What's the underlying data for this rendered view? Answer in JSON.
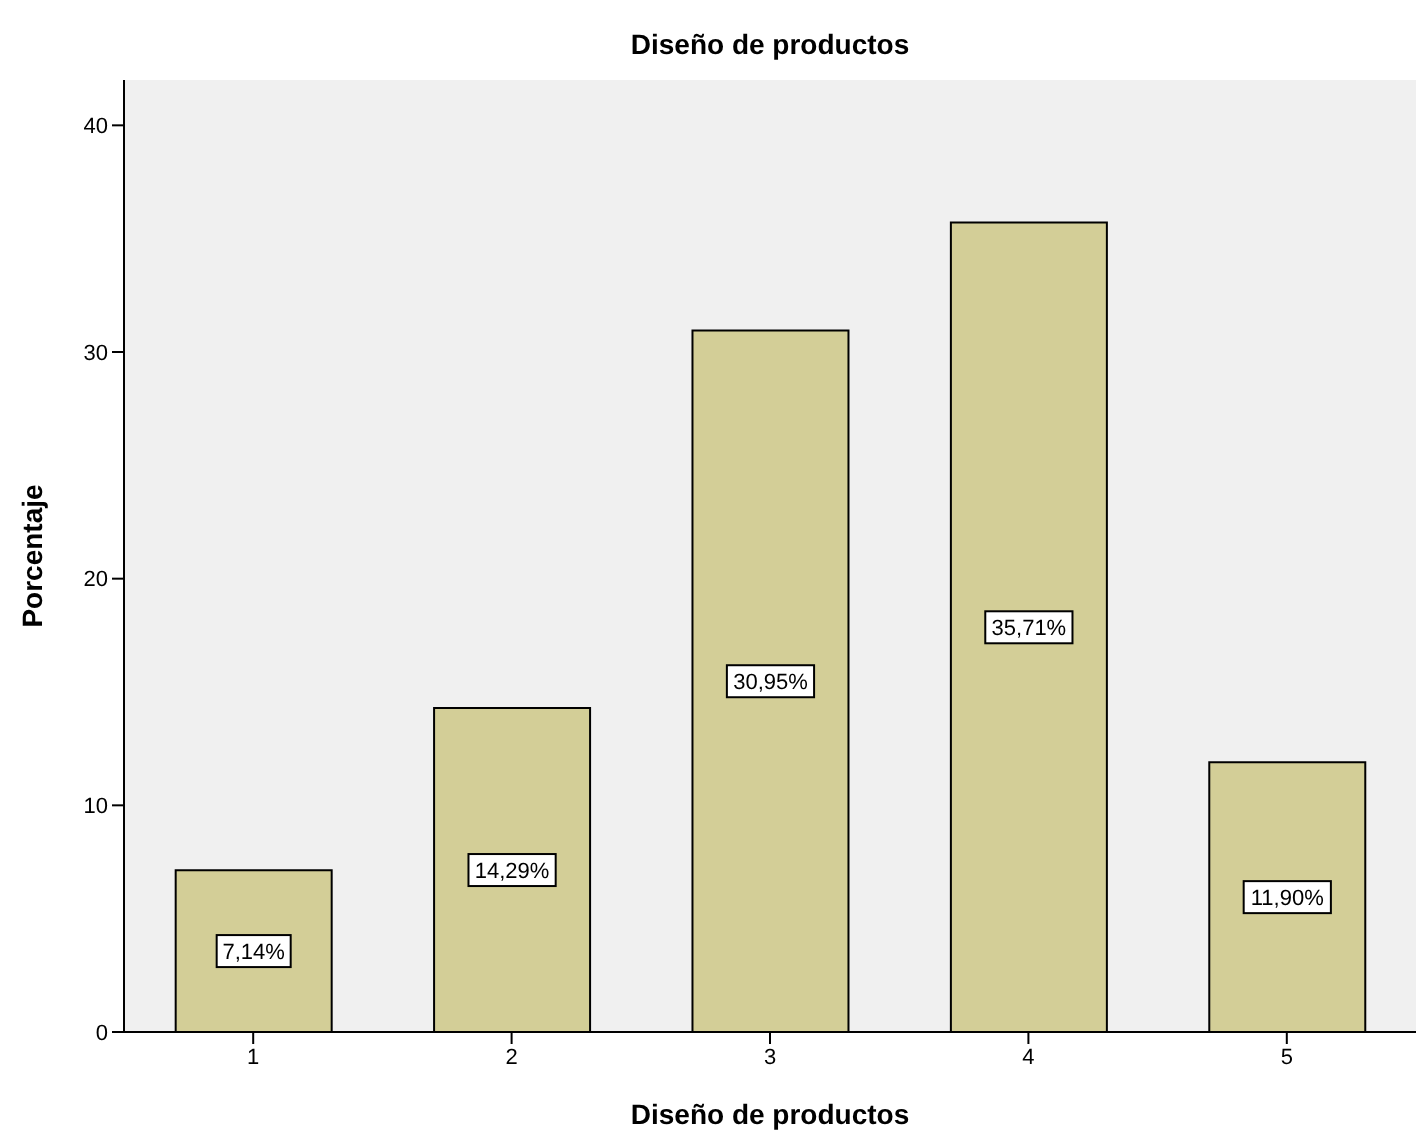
{
  "chart_data": {
    "type": "bar",
    "title": "Diseño de productos",
    "xlabel": "Diseño de productos",
    "ylabel": "Porcentaje",
    "categories": [
      "1",
      "2",
      "3",
      "4",
      "5"
    ],
    "values": [
      7.14,
      14.29,
      30.95,
      35.71,
      11.9
    ],
    "value_labels": [
      "7,14%",
      "14,29%",
      "30,95%",
      "35,71%",
      "11,90%"
    ],
    "color": "#d3ce97",
    "ylim": [
      0,
      42
    ],
    "yticks": [
      0,
      10,
      20,
      30,
      40
    ]
  }
}
